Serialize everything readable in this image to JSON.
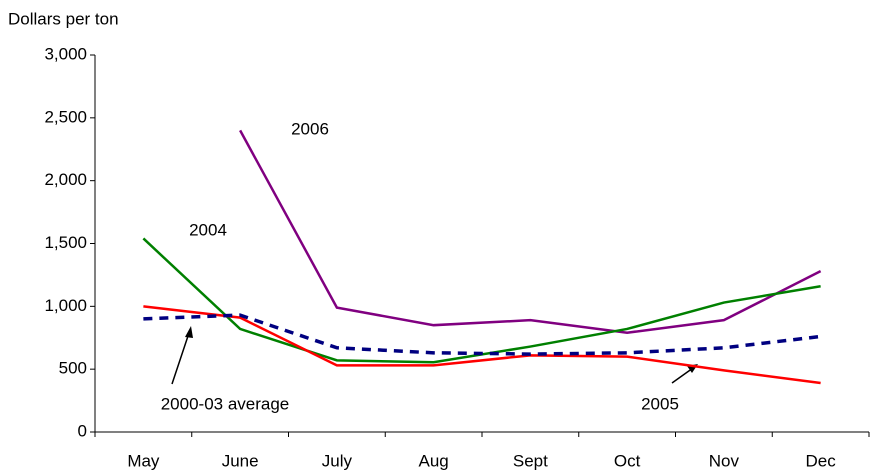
{
  "chart_data": {
    "type": "line",
    "y_label": "Dollars per ton",
    "categories": [
      "May",
      "June",
      "July",
      "Aug",
      "Sept",
      "Oct",
      "Nov",
      "Dec"
    ],
    "series": [
      {
        "name": "2006",
        "color": "#800080",
        "line_style": "solid",
        "values": [
          null,
          2400,
          990,
          850,
          890,
          790,
          890,
          1280
        ]
      },
      {
        "name": "2004",
        "color": "#008000",
        "line_style": "solid",
        "values": [
          1540,
          820,
          570,
          555,
          680,
          820,
          1030,
          1160
        ]
      },
      {
        "name": "2005",
        "color": "#ff0000",
        "line_style": "solid",
        "values": [
          1000,
          910,
          530,
          530,
          610,
          600,
          490,
          390
        ]
      },
      {
        "name": "2000-03 average",
        "color": "#000080",
        "line_style": "dashed",
        "values": [
          900,
          930,
          670,
          630,
          620,
          630,
          670,
          760
        ]
      }
    ],
    "ylim": [
      0,
      3000
    ],
    "yticks": [
      0,
      500,
      {
        "value": 1000,
        "label": "1,000"
      },
      {
        "value": 1500,
        "label": "1,500"
      },
      {
        "value": 2000,
        "label": "2,000"
      },
      {
        "value": 2500,
        "label": "2,500"
      },
      {
        "value": 3000,
        "label": "3,000"
      }
    ],
    "grid": false
  }
}
